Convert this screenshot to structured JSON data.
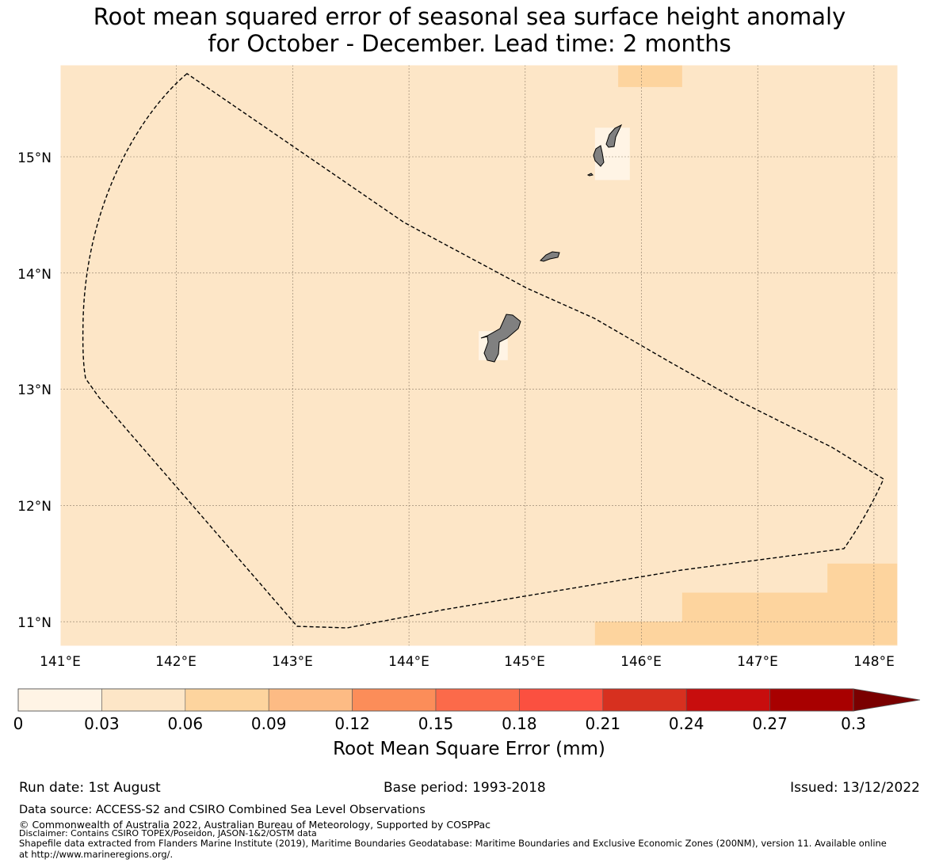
{
  "title_line1": "Root mean squared error of seasonal sea surface height anomaly",
  "title_line2": "for October - December. Lead time: 2 months",
  "map": {
    "lon_ticks": [
      "141°E",
      "142°E",
      "143°E",
      "144°E",
      "145°E",
      "146°E",
      "147°E",
      "148°E"
    ],
    "lat_ticks": [
      "15°N",
      "14°N",
      "13°N",
      "12°N",
      "11°N"
    ],
    "background_color": "#fde6c7",
    "land_color": "#808080",
    "cells": [
      {
        "lon_range": [
          145.8,
          146.35
        ],
        "lat_range": [
          15.6,
          15.8
        ],
        "value_bin": "0.06-0.09",
        "color": "#fdd49e"
      },
      {
        "lon_range": [
          145.6,
          145.9
        ],
        "lat_range": [
          14.8,
          15.25
        ],
        "value_bin": "0-0.03",
        "color": "#fff4e5"
      },
      {
        "lon_range": [
          144.6,
          144.85
        ],
        "lat_range": [
          13.25,
          13.5
        ],
        "value_bin": "0-0.03",
        "color": "#fff4e5"
      },
      {
        "lon_range": [
          145.6,
          148.2
        ],
        "lat_range": [
          10.8,
          11.0
        ],
        "value_bin": "0.06-0.09",
        "color": "#fdd49e"
      },
      {
        "lon_range": [
          146.35,
          148.2
        ],
        "lat_range": [
          11.0,
          11.25
        ],
        "value_bin": "0.06-0.09",
        "color": "#fdd49e"
      },
      {
        "lon_range": [
          147.6,
          148.2
        ],
        "lat_range": [
          11.25,
          11.5
        ],
        "value_bin": "0.06-0.09",
        "color": "#fdd49e"
      }
    ]
  },
  "colorbar": {
    "labels": [
      "0",
      "0.03",
      "0.06",
      "0.09",
      "0.12",
      "0.15",
      "0.18",
      "0.21",
      "0.24",
      "0.27",
      "0.3"
    ],
    "colors": [
      "#fff4e5",
      "#fde6c7",
      "#fdd49e",
      "#fdbb84",
      "#fc8d59",
      "#fc6a4a",
      "#fb5040",
      "#d7301f",
      "#c80d0d",
      "#a80000",
      "#7a0000"
    ],
    "label": "Root Mean Square Error (mm)"
  },
  "footer": {
    "run_date": "Run date: 1st August",
    "base_period": "Base period: 1993-2018",
    "issued": "Issued: 13/12/2022",
    "data_source": "Data source: ACCESS-S2 and CSIRO Combined Sea Level Observations",
    "copyright": "© Commonwealth of Australia 2022, Australian Bureau of Meteorology, Supported by COSPPac",
    "disclaimer": "Disclaimer: Contains CSIRO TOPEX/Poseidon, JASON-1&2/OSTM data",
    "shapefile1": "Shapefile data extracted from Flanders Marine Institute (2019), Maritime Boundaries Geodatabase: Maritime Boundaries and Exclusive Economic Zones (200NM), version 11. Available online",
    "shapefile2": "at http://www.marineregions.org/."
  }
}
